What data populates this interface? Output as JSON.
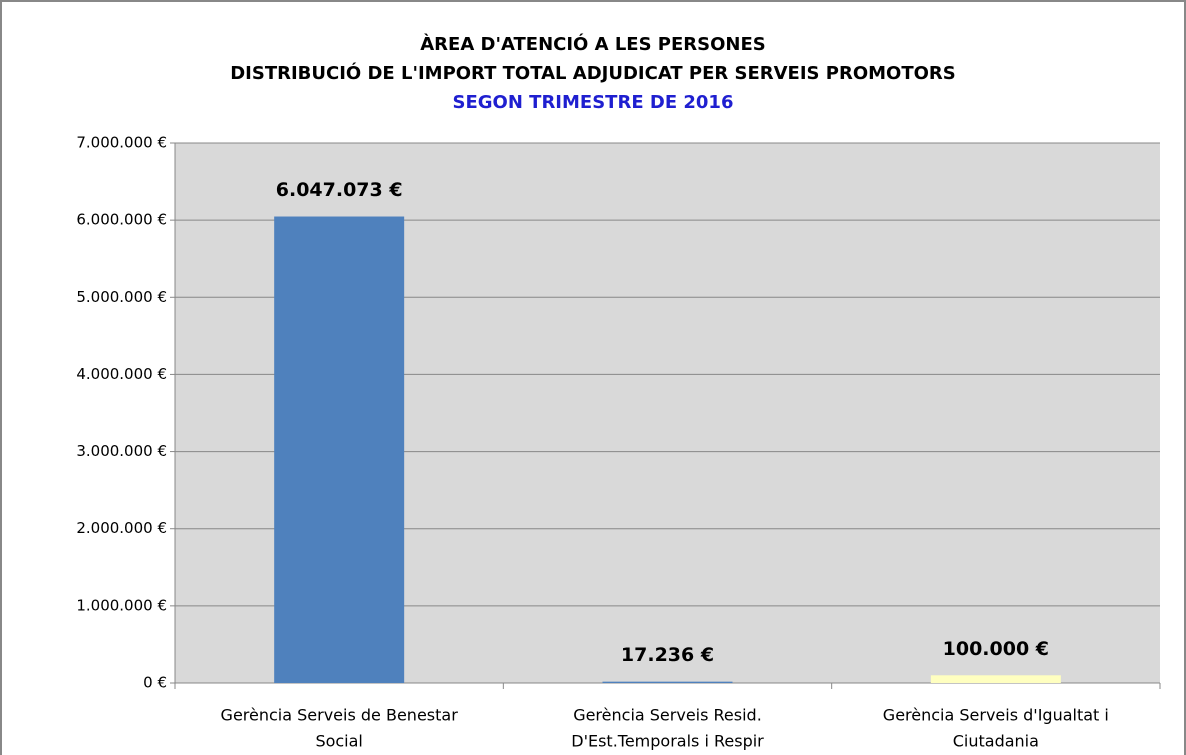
{
  "chart_data": {
    "type": "bar",
    "title": [
      "ÀREA D'ATENCIÓ A LES PERSONES",
      "DISTRIBUCIÓ DE L'IMPORT TOTAL ADJUDICAT PER SERVEIS PROMOTORS"
    ],
    "subtitle": "SEGON TRIMESTRE DE 2016",
    "subtitle_color": "#1f1fd0",
    "categories": [
      [
        "Gerència Serveis de Benestar",
        "Social"
      ],
      [
        "Gerència Serveis Resid.",
        "D'Est.Temporals i Respir"
      ],
      [
        "Gerència Serveis d'Igualtat i",
        "Ciutadania"
      ]
    ],
    "values": [
      6047073,
      17236,
      100000
    ],
    "value_labels": [
      "6.047.073 €",
      "17.236 €",
      "100.000 €"
    ],
    "colors": [
      "#4f81bd",
      "#4f81bd",
      "#ffffc0"
    ],
    "ylim": [
      0,
      7000000
    ],
    "yticks": [
      {
        "value": 0,
        "label": "0 €"
      },
      {
        "value": 1000000,
        "label": "1.000.000 €"
      },
      {
        "value": 2000000,
        "label": "2.000.000 €"
      },
      {
        "value": 3000000,
        "label": "3.000.000 €"
      },
      {
        "value": 4000000,
        "label": "4.000.000 €"
      },
      {
        "value": 5000000,
        "label": "5.000.000 €"
      },
      {
        "value": 6000000,
        "label": "6.000.000 €"
      },
      {
        "value": 7000000,
        "label": "7.000.000 €"
      }
    ],
    "grid": true
  }
}
